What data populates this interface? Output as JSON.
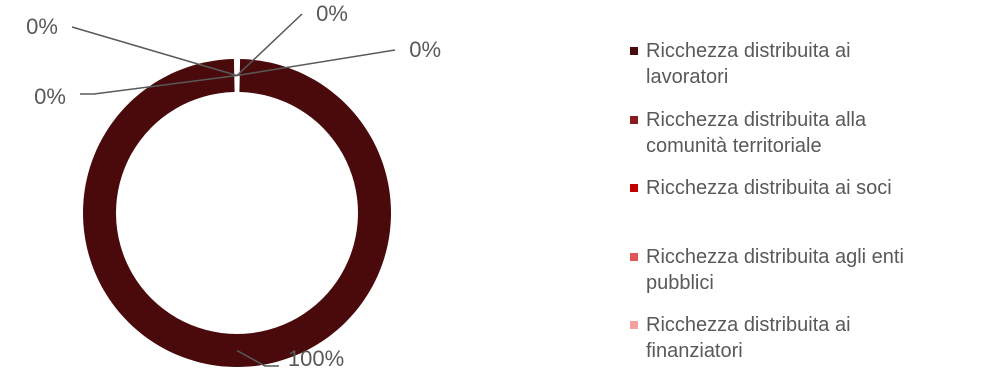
{
  "chart_data": {
    "type": "pie",
    "variant": "doughnut",
    "legend_position": "right",
    "categories": [
      "Ricchezza distribuita ai lavoratori",
      "Ricchezza distribuita alla comunità territoriale",
      "Ricchezza distribuita ai soci",
      "Ricchezza distribuita agli enti pubblici",
      "Ricchezza distribuita ai finanziatori"
    ],
    "values": [
      100,
      0,
      0,
      0,
      0
    ],
    "data_labels": [
      "100%",
      "0%",
      "0%",
      "0%",
      "0%"
    ],
    "colors": [
      "#4a0a0c",
      "#8b1a1a",
      "#c00000",
      "#e05555",
      "#f2a0a0"
    ]
  }
}
